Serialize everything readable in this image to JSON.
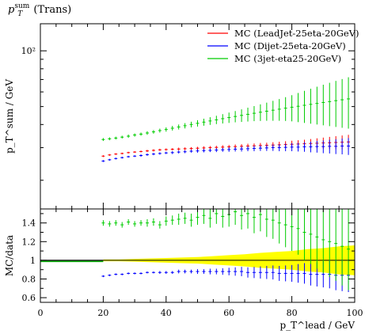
{
  "page_title": "p_T^sum (Trans)",
  "chart_data": [
    {
      "type": "scatter",
      "panel": "main",
      "title": "p_T^sum (Trans)",
      "ylabel": "p_T^sum / GeV",
      "yscale": "log",
      "ylim": [
        14,
        140
      ],
      "xlim": [
        0,
        100
      ],
      "y_ticks": [
        {
          "value": 100,
          "label": "10²"
        }
      ],
      "legend_position": "top-right",
      "series": [
        {
          "name": "MC (LeadJet-25eta-20GeV)",
          "color": "#ff0000",
          "x": [
            20,
            22,
            24,
            26,
            28,
            30,
            32,
            34,
            36,
            38,
            40,
            42,
            44,
            46,
            48,
            50,
            52,
            54,
            56,
            58,
            60,
            62,
            64,
            66,
            68,
            70,
            72,
            74,
            76,
            78,
            80,
            82,
            84,
            86,
            88,
            90,
            92,
            94,
            96,
            98
          ],
          "y": [
            27.0,
            27.4,
            27.7,
            27.9,
            28.2,
            28.4,
            28.6,
            28.8,
            29.0,
            29.2,
            29.3,
            29.4,
            29.5,
            29.6,
            29.7,
            29.8,
            29.9,
            30.0,
            30.1,
            30.2,
            30.3,
            30.4,
            30.5,
            30.6,
            30.7,
            30.8,
            30.9,
            31.0,
            31.1,
            31.2,
            31.3,
            31.4,
            31.5,
            31.6,
            31.7,
            31.8,
            31.9,
            32.0,
            32.1,
            32.2
          ],
          "yerr": [
            0.3,
            0.3,
            0.3,
            0.3,
            0.3,
            0.3,
            0.3,
            0.4,
            0.4,
            0.4,
            0.4,
            0.4,
            0.5,
            0.5,
            0.5,
            0.5,
            0.6,
            0.6,
            0.6,
            0.7,
            0.7,
            0.8,
            0.8,
            0.9,
            0.9,
            1.0,
            1.0,
            1.1,
            1.2,
            1.3,
            1.4,
            1.5,
            1.6,
            1.8,
            2.0,
            2.2,
            2.4,
            2.6,
            2.8,
            3.0
          ]
        },
        {
          "name": "MC (Dijet-25eta-20GeV)",
          "color": "#0000ff",
          "x": [
            20,
            22,
            24,
            26,
            28,
            30,
            32,
            34,
            36,
            38,
            40,
            42,
            44,
            46,
            48,
            50,
            52,
            54,
            56,
            58,
            60,
            62,
            64,
            66,
            68,
            70,
            72,
            74,
            76,
            78,
            80,
            82,
            84,
            86,
            88,
            90,
            92,
            94,
            96,
            98
          ],
          "y": [
            25.4,
            25.8,
            26.2,
            26.5,
            26.8,
            27.0,
            27.2,
            27.5,
            27.7,
            27.9,
            28.1,
            28.2,
            28.4,
            28.5,
            28.7,
            28.8,
            28.9,
            29.0,
            29.1,
            29.2,
            29.3,
            29.4,
            29.5,
            29.6,
            29.7,
            29.8,
            29.9,
            30.0,
            30.0,
            30.1,
            30.2,
            30.2,
            30.3,
            30.3,
            30.4,
            30.4,
            30.5,
            30.5,
            30.6,
            30.6
          ],
          "yerr": [
            0.3,
            0.3,
            0.3,
            0.3,
            0.3,
            0.3,
            0.4,
            0.4,
            0.4,
            0.4,
            0.4,
            0.5,
            0.5,
            0.5,
            0.5,
            0.6,
            0.6,
            0.6,
            0.7,
            0.7,
            0.8,
            0.8,
            0.9,
            0.9,
            1.0,
            1.0,
            1.1,
            1.2,
            1.3,
            1.4,
            1.5,
            1.6,
            1.8,
            2.0,
            2.2,
            2.4,
            2.6,
            2.8,
            3.0,
            3.2
          ]
        },
        {
          "name": "MC (3jet-eta25-20GeV)",
          "color": "#00cc00",
          "x": [
            20,
            22,
            24,
            26,
            28,
            30,
            32,
            34,
            36,
            38,
            40,
            42,
            44,
            46,
            48,
            50,
            52,
            54,
            56,
            58,
            60,
            62,
            64,
            66,
            68,
            70,
            72,
            74,
            76,
            78,
            80,
            82,
            84,
            86,
            88,
            90,
            92,
            94,
            96,
            98
          ],
          "y": [
            33.2,
            33.5,
            33.8,
            34.2,
            34.6,
            35.1,
            35.5,
            36.0,
            36.5,
            37.1,
            37.6,
            38.2,
            38.8,
            39.4,
            40.0,
            40.6,
            41.2,
            41.8,
            42.4,
            43.0,
            43.6,
            44.2,
            44.8,
            45.4,
            46.0,
            46.6,
            47.2,
            47.8,
            48.4,
            49.0,
            49.6,
            50.2,
            50.8,
            51.4,
            52.0,
            52.6,
            53.2,
            53.8,
            54.4,
            55.0
          ],
          "yerr": [
            0.6,
            0.6,
            0.6,
            0.6,
            0.7,
            0.7,
            0.7,
            0.8,
            0.8,
            0.9,
            1.0,
            1.1,
            1.2,
            1.3,
            1.4,
            1.6,
            1.8,
            2.0,
            2.2,
            2.5,
            2.8,
            3.1,
            3.5,
            3.9,
            4.3,
            4.8,
            5.3,
            5.9,
            6.5,
            7.2,
            8.0,
            9.0,
            10.0,
            11.0,
            12.0,
            13.0,
            14.0,
            15.0,
            16.0,
            17.0
          ]
        }
      ]
    },
    {
      "type": "scatter",
      "panel": "ratio",
      "ylabel": "MC/data",
      "xlabel": "p_T^lead / GeV",
      "ylim": [
        0.55,
        1.55
      ],
      "xlim": [
        0,
        100
      ],
      "y_ticks": [
        0.6,
        0.8,
        1,
        1.2,
        1.4
      ],
      "x_ticks": [
        0,
        20,
        40,
        60,
        80,
        100
      ],
      "reference_line": 1,
      "uncertainty_band": {
        "color": "#ffff00",
        "x": [
          20,
          25,
          30,
          35,
          40,
          45,
          50,
          55,
          60,
          65,
          70,
          75,
          80,
          85,
          90,
          95,
          100
        ],
        "half_width": [
          0.01,
          0.01,
          0.015,
          0.02,
          0.025,
          0.03,
          0.035,
          0.045,
          0.055,
          0.065,
          0.08,
          0.09,
          0.1,
          0.12,
          0.13,
          0.15,
          0.16
        ]
      },
      "series": [
        {
          "name": "MC (LeadJet-25eta-20GeV)",
          "color": "#ff0000",
          "x": [],
          "y": [],
          "yerr": []
        },
        {
          "name": "MC (Dijet-25eta-20GeV)",
          "color": "#0000ff",
          "x": [
            20,
            22,
            24,
            26,
            28,
            30,
            32,
            34,
            36,
            38,
            40,
            42,
            44,
            46,
            48,
            50,
            52,
            54,
            56,
            58,
            60,
            62,
            64,
            66,
            68,
            70,
            72,
            74,
            76,
            78,
            80,
            82,
            84,
            86,
            88,
            90,
            92,
            94,
            96,
            98
          ],
          "y": [
            0.83,
            0.84,
            0.85,
            0.85,
            0.86,
            0.86,
            0.86,
            0.87,
            0.87,
            0.87,
            0.87,
            0.87,
            0.88,
            0.88,
            0.88,
            0.88,
            0.88,
            0.88,
            0.88,
            0.88,
            0.88,
            0.88,
            0.88,
            0.87,
            0.87,
            0.87,
            0.87,
            0.87,
            0.86,
            0.86,
            0.86,
            0.86,
            0.86,
            0.85,
            0.85,
            0.85,
            0.85,
            0.84,
            0.84,
            0.84
          ],
          "yerr": [
            0.01,
            0.01,
            0.01,
            0.01,
            0.01,
            0.01,
            0.01,
            0.01,
            0.01,
            0.015,
            0.015,
            0.015,
            0.02,
            0.02,
            0.02,
            0.025,
            0.025,
            0.03,
            0.03,
            0.035,
            0.04,
            0.045,
            0.05,
            0.055,
            0.06,
            0.065,
            0.07,
            0.075,
            0.08,
            0.085,
            0.09,
            0.1,
            0.11,
            0.12,
            0.13,
            0.14,
            0.15,
            0.16,
            0.17,
            0.18
          ]
        },
        {
          "name": "MC (3jet-eta25-20GeV)",
          "color": "#00cc00",
          "x": [
            20,
            22,
            24,
            26,
            28,
            30,
            32,
            34,
            36,
            38,
            40,
            42,
            44,
            46,
            48,
            50,
            52,
            54,
            56,
            58,
            60,
            62,
            64,
            66,
            68,
            70,
            72,
            74,
            76,
            78,
            80,
            82,
            84,
            86,
            88,
            90,
            92,
            94,
            96,
            98
          ],
          "y": [
            1.4,
            1.39,
            1.4,
            1.38,
            1.41,
            1.39,
            1.4,
            1.4,
            1.41,
            1.38,
            1.42,
            1.43,
            1.44,
            1.45,
            1.43,
            1.46,
            1.48,
            1.45,
            1.5,
            1.47,
            1.49,
            1.52,
            1.48,
            1.5,
            1.46,
            1.49,
            1.44,
            1.43,
            1.4,
            1.38,
            1.36,
            1.34,
            1.3,
            1.28,
            1.25,
            1.22,
            1.2,
            1.18,
            1.15,
            1.12
          ],
          "yerr": [
            0.03,
            0.03,
            0.03,
            0.03,
            0.03,
            0.03,
            0.03,
            0.04,
            0.04,
            0.04,
            0.05,
            0.05,
            0.06,
            0.06,
            0.07,
            0.08,
            0.09,
            0.1,
            0.11,
            0.12,
            0.13,
            0.14,
            0.15,
            0.16,
            0.17,
            0.18,
            0.19,
            0.2,
            0.22,
            0.24,
            0.26,
            0.28,
            0.3,
            0.32,
            0.34,
            0.36,
            0.38,
            0.4,
            0.42,
            0.44
          ]
        }
      ]
    }
  ]
}
